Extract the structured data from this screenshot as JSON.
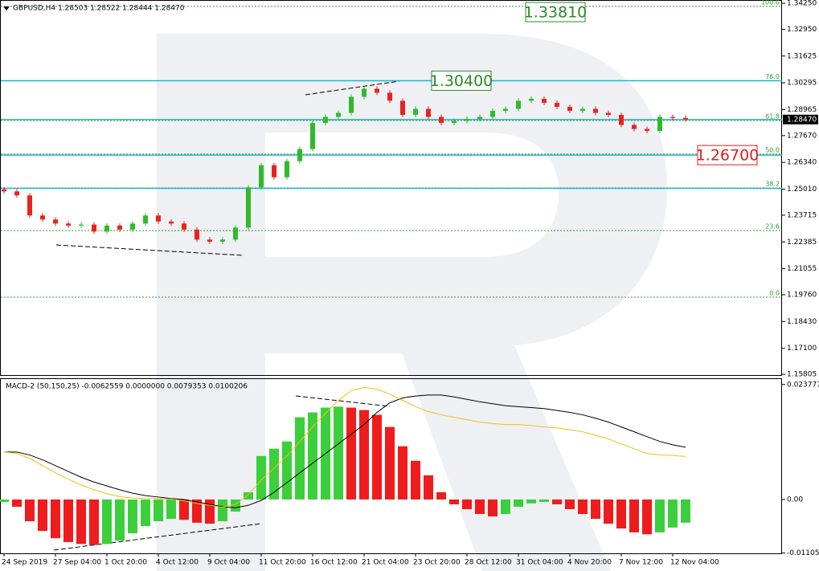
{
  "chart_data": [
    {
      "type": "candlestick",
      "title": "GBPUSD,H4  1.28503 1.28522 1.28444 1.28470",
      "open": [
        1.25,
        1.249,
        1.247,
        1.237,
        1.235,
        1.233,
        1.232,
        1.2325,
        1.229,
        1.232,
        1.23,
        1.233,
        1.237,
        1.234,
        1.233,
        1.23,
        1.225,
        1.224,
        1.225,
        1.231,
        1.251,
        1.262,
        1.256,
        1.264,
        1.27,
        1.283,
        1.286,
        1.288,
        1.296,
        1.3,
        1.298,
        1.294,
        1.287,
        1.29,
        1.286,
        1.283,
        1.284,
        1.285,
        1.286,
        1.289,
        1.29,
        1.294,
        1.295,
        1.293,
        1.291,
        1.289,
        1.29,
        1.288,
        1.287,
        1.282,
        1.28,
        1.279,
        1.286,
        1.2855
      ],
      "high": [
        1.2512,
        1.2502,
        1.2482,
        1.2382,
        1.2362,
        1.2342,
        1.2337,
        1.2337,
        1.2332,
        1.2332,
        1.2342,
        1.2382,
        1.2382,
        1.2352,
        1.2342,
        1.2312,
        1.2262,
        1.2262,
        1.2322,
        1.2522,
        1.2632,
        1.2632,
        1.2652,
        1.2712,
        1.2842,
        1.2872,
        1.2892,
        1.2972,
        1.3012,
        1.3012,
        1.2992,
        1.2952,
        1.2912,
        1.2912,
        1.2872,
        1.2852,
        1.2862,
        1.2872,
        1.2902,
        1.2912,
        1.2952,
        1.2962,
        1.2962,
        1.2942,
        1.2922,
        1.2912,
        1.2912,
        1.2892,
        1.2882,
        1.2832,
        1.2812,
        1.2872,
        1.2872,
        1.2867
      ],
      "low": [
        1.2478,
        1.2458,
        1.2358,
        1.2338,
        1.2318,
        1.2308,
        1.2308,
        1.2278,
        1.2278,
        1.2288,
        1.2288,
        1.2318,
        1.2328,
        1.2318,
        1.2288,
        1.2238,
        1.2228,
        1.2228,
        1.2238,
        1.2298,
        1.2498,
        1.2548,
        1.2548,
        1.2628,
        1.2688,
        1.2818,
        1.2848,
        1.2868,
        1.2948,
        1.2968,
        1.2928,
        1.2858,
        1.2858,
        1.2848,
        1.2818,
        1.2818,
        1.2828,
        1.2838,
        1.2848,
        1.2878,
        1.2888,
        1.2928,
        1.2918,
        1.2898,
        1.2878,
        1.2878,
        1.2868,
        1.2858,
        1.2808,
        1.2788,
        1.2778,
        1.2778,
        1.2843,
        1.2835
      ],
      "close": [
        1.249,
        1.247,
        1.237,
        1.235,
        1.233,
        1.232,
        1.2325,
        1.229,
        1.232,
        1.23,
        1.233,
        1.237,
        1.234,
        1.233,
        1.23,
        1.225,
        1.224,
        1.225,
        1.231,
        1.251,
        1.262,
        1.256,
        1.264,
        1.27,
        1.283,
        1.286,
        1.288,
        1.296,
        1.3,
        1.298,
        1.294,
        1.287,
        1.29,
        1.286,
        1.283,
        1.284,
        1.285,
        1.286,
        1.289,
        1.29,
        1.294,
        1.295,
        1.293,
        1.291,
        1.289,
        1.29,
        1.288,
        1.287,
        1.282,
        1.28,
        1.279,
        1.286,
        1.2855,
        1.2847
      ],
      "up_color": "#2dbb2d",
      "down_color": "#e8231f",
      "ylim": [
        1.1573,
        1.3441
      ],
      "yticks": [
        {
          "value": 1.3425,
          "label": "1.34250"
        },
        {
          "value": 1.3295,
          "label": "1.32950"
        },
        1.31625,
        1.30295,
        1.28965,
        {
          "value": 1.2767,
          "label": "1.27670"
        },
        {
          "value": 1.2634,
          "label": "1.26340"
        },
        {
          "value": 1.2501,
          "label": "1.25010"
        },
        1.23715,
        1.22385,
        1.21055,
        {
          "value": 1.1976,
          "label": "1.19760"
        },
        {
          "value": 1.1843,
          "label": "1.18430"
        },
        {
          "value": 1.171,
          "label": "1.17100"
        },
        1.15805
      ],
      "h_lines": [
        1.304,
        1.2847,
        1.267,
        1.2505
      ],
      "h_line_color": "#26b3cc",
      "fib_levels": [
        {
          "value": 1.3409,
          "label": "100.0"
        },
        {
          "value": 1.304,
          "label": "76.0"
        },
        {
          "value": 1.2842,
          "label": "61.8"
        },
        {
          "value": 1.2675,
          "label": "50.0"
        },
        {
          "value": 1.2507,
          "label": "38.2"
        },
        {
          "value": 1.2295,
          "label": "23.6"
        },
        {
          "value": 1.1964,
          "label": "0.0"
        }
      ],
      "fib_color": "#2e9e2e",
      "price_boxes": [
        {
          "value": 1.3381,
          "label": "1.33810",
          "color": "#2a8a2a"
        },
        {
          "value": 1.304,
          "label": "1.30400",
          "color": "#2a8a2a"
        },
        {
          "value": 1.267,
          "label": "1.26700",
          "color": "#e02020"
        }
      ],
      "current_price": {
        "value": 1.2847,
        "label": "1.28470"
      }
    },
    {
      "type": "macd",
      "title": "MACD-2 (50,150,25) -0.0062559 0.0000000 0.0079353 0.0100206",
      "categories": [
        "24 Sep 2019",
        null,
        null,
        null,
        "27 Sep 04:00",
        null,
        null,
        null,
        "1 Oct 20:00",
        null,
        null,
        null,
        "4 Oct 12:00",
        null,
        null,
        null,
        "9 Oct 04:00",
        null,
        null,
        null,
        "11 Oct 20:00",
        null,
        null,
        null,
        "16 Oct 12:00",
        null,
        null,
        null,
        "21 Oct 04:00",
        null,
        null,
        null,
        "23 Oct 20:00",
        null,
        null,
        null,
        "28 Oct 12:00",
        null,
        null,
        null,
        "31 Oct 04:00",
        null,
        null,
        null,
        "4 Nov 20:00",
        null,
        null,
        null,
        "7 Nov 12:00",
        null,
        null,
        null,
        "12 Nov 04:00",
        null
      ],
      "values": [
        -0.0005,
        -0.0015,
        -0.0045,
        -0.0065,
        -0.008,
        -0.0088,
        -0.0092,
        -0.0094,
        -0.0092,
        -0.0085,
        -0.007,
        -0.0055,
        -0.0045,
        -0.004,
        -0.0042,
        -0.0048,
        -0.005,
        -0.0045,
        -0.0025,
        0.0015,
        0.009,
        0.0105,
        0.012,
        0.017,
        0.018,
        0.019,
        0.0192,
        0.019,
        0.0185,
        0.0175,
        0.015,
        0.011,
        0.008,
        0.005,
        0.0015,
        -0.001,
        -0.002,
        -0.003,
        -0.0035,
        -0.003,
        -0.0015,
        -0.0008,
        -0.0005,
        -0.001,
        -0.002,
        -0.003,
        -0.004,
        -0.005,
        -0.006,
        -0.0068,
        -0.0072,
        -0.0068,
        -0.0058,
        -0.0048
      ],
      "up_color": "#3ccf3c",
      "down_color": "#ee1c1c",
      "lines": [
        {
          "color": "#000000",
          "values": [
            0.0098,
            0.0098,
            0.0092,
            0.0082,
            0.007,
            0.0058,
            0.0046,
            0.0036,
            0.0028,
            0.002,
            0.0013,
            0.0008,
            0.0005,
            0.0002,
            0,
            -0.0005,
            -0.001,
            -0.0015,
            -0.0017,
            -0.0012,
            -0.0002,
            0.0015,
            0.0035,
            0.0055,
            0.0075,
            0.0095,
            0.0115,
            0.0135,
            0.0155,
            0.018,
            0.02,
            0.021,
            0.0214,
            0.0216,
            0.0216,
            0.0212,
            0.0207,
            0.0202,
            0.0198,
            0.0194,
            0.0192,
            0.019,
            0.0188,
            0.0184,
            0.018,
            0.0175,
            0.0168,
            0.016,
            0.015,
            0.014,
            0.013,
            0.012,
            0.0113,
            0.0108
          ]
        },
        {
          "color": "#f0c010",
          "values": [
            0.0098,
            0.0095,
            0.0085,
            0.007,
            0.0055,
            0.0042,
            0.003,
            0.002,
            0.0012,
            0.0006,
            0.0003,
            0.0002,
            0.0002,
            0.0001,
            -0.0003,
            -0.0008,
            -0.0012,
            -0.0016,
            -0.001,
            0.001,
            0.004,
            0.0065,
            0.009,
            0.012,
            0.015,
            0.0178,
            0.0205,
            0.0225,
            0.0232,
            0.0228,
            0.0218,
            0.0205,
            0.0192,
            0.0182,
            0.0175,
            0.017,
            0.0165,
            0.016,
            0.0157,
            0.0155,
            0.0155,
            0.0153,
            0.015,
            0.0148,
            0.0144,
            0.014,
            0.0133,
            0.0125,
            0.0115,
            0.0105,
            0.0095,
            0.0092,
            0.0091,
            0.0089
          ]
        }
      ],
      "ylim": [
        -0.0113,
        0.0249
      ],
      "yticks": [
        0.0237773,
        {
          "value": 0,
          "label": "0.00"
        },
        -0.0110589
      ]
    }
  ]
}
